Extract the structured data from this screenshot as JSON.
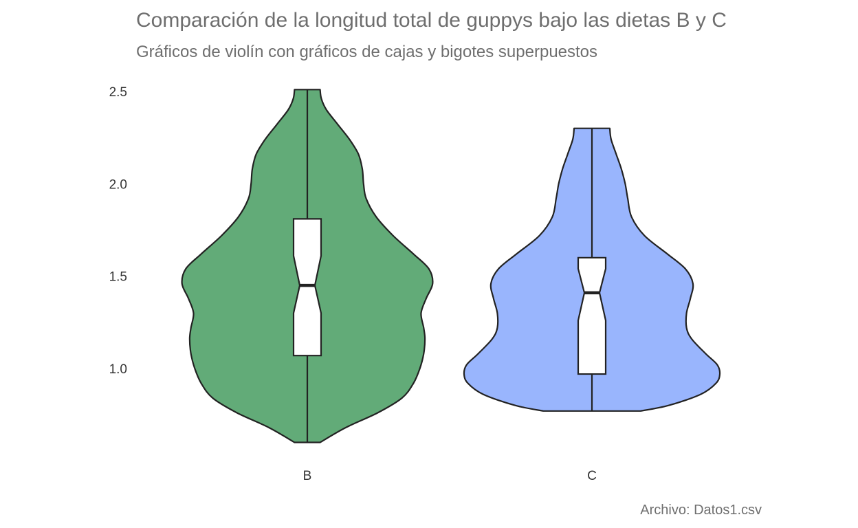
{
  "chart_data": {
    "type": "violin",
    "title": "Comparación de la longitud total de guppys bajo las dietas B y C",
    "subtitle": "Gráficos de violín con gráficos de cajas y bigotes superpuestos",
    "caption": "Archivo: Datos1.csv",
    "xlabel": "",
    "ylabel": "",
    "categories": [
      "B",
      "C"
    ],
    "y_ticks": [
      1.0,
      1.5,
      2.0,
      2.5
    ],
    "y_tick_labels": [
      "1.0",
      "1.5",
      "2.0",
      "2.5"
    ],
    "ylim": [
      0.55,
      2.55
    ],
    "grid": false,
    "legend": "none",
    "series": [
      {
        "category": "B",
        "color": "#62ab78",
        "box": {
          "min": 0.6,
          "q1": 1.07,
          "notch_low": 1.3,
          "median": 1.45,
          "notch_high": 1.61,
          "q3": 1.81,
          "max": 2.51
        },
        "density": [
          [
            0.6,
            0.1
          ],
          [
            0.68,
            0.3
          ],
          [
            0.76,
            0.55
          ],
          [
            0.84,
            0.74
          ],
          [
            0.92,
            0.83
          ],
          [
            1.0,
            0.88
          ],
          [
            1.08,
            0.91
          ],
          [
            1.16,
            0.92
          ],
          [
            1.22,
            0.91
          ],
          [
            1.3,
            0.89
          ],
          [
            1.38,
            0.93
          ],
          [
            1.46,
            0.98
          ],
          [
            1.54,
            0.95
          ],
          [
            1.62,
            0.83
          ],
          [
            1.72,
            0.67
          ],
          [
            1.82,
            0.54
          ],
          [
            1.92,
            0.46
          ],
          [
            2.0,
            0.44
          ],
          [
            2.08,
            0.43
          ],
          [
            2.16,
            0.4
          ],
          [
            2.24,
            0.33
          ],
          [
            2.32,
            0.24
          ],
          [
            2.4,
            0.15
          ],
          [
            2.46,
            0.11
          ],
          [
            2.51,
            0.1
          ]
        ]
      },
      {
        "category": "C",
        "color": "#99b5fd",
        "box": {
          "min": 0.77,
          "q1": 0.97,
          "notch_low": 1.26,
          "median": 1.41,
          "notch_high": 1.54,
          "q3": 1.6,
          "max": 2.3
        },
        "density": [
          [
            0.77,
            0.38
          ],
          [
            0.8,
            0.6
          ],
          [
            0.86,
            0.85
          ],
          [
            0.92,
            0.97
          ],
          [
            0.97,
            1.0
          ],
          [
            1.02,
            0.98
          ],
          [
            1.08,
            0.89
          ],
          [
            1.16,
            0.78
          ],
          [
            1.22,
            0.74
          ],
          [
            1.3,
            0.74
          ],
          [
            1.38,
            0.77
          ],
          [
            1.46,
            0.79
          ],
          [
            1.54,
            0.73
          ],
          [
            1.62,
            0.59
          ],
          [
            1.72,
            0.41
          ],
          [
            1.82,
            0.31
          ],
          [
            1.92,
            0.28
          ],
          [
            2.0,
            0.26
          ],
          [
            2.08,
            0.23
          ],
          [
            2.16,
            0.19
          ],
          [
            2.24,
            0.15
          ],
          [
            2.3,
            0.14
          ]
        ]
      }
    ]
  }
}
